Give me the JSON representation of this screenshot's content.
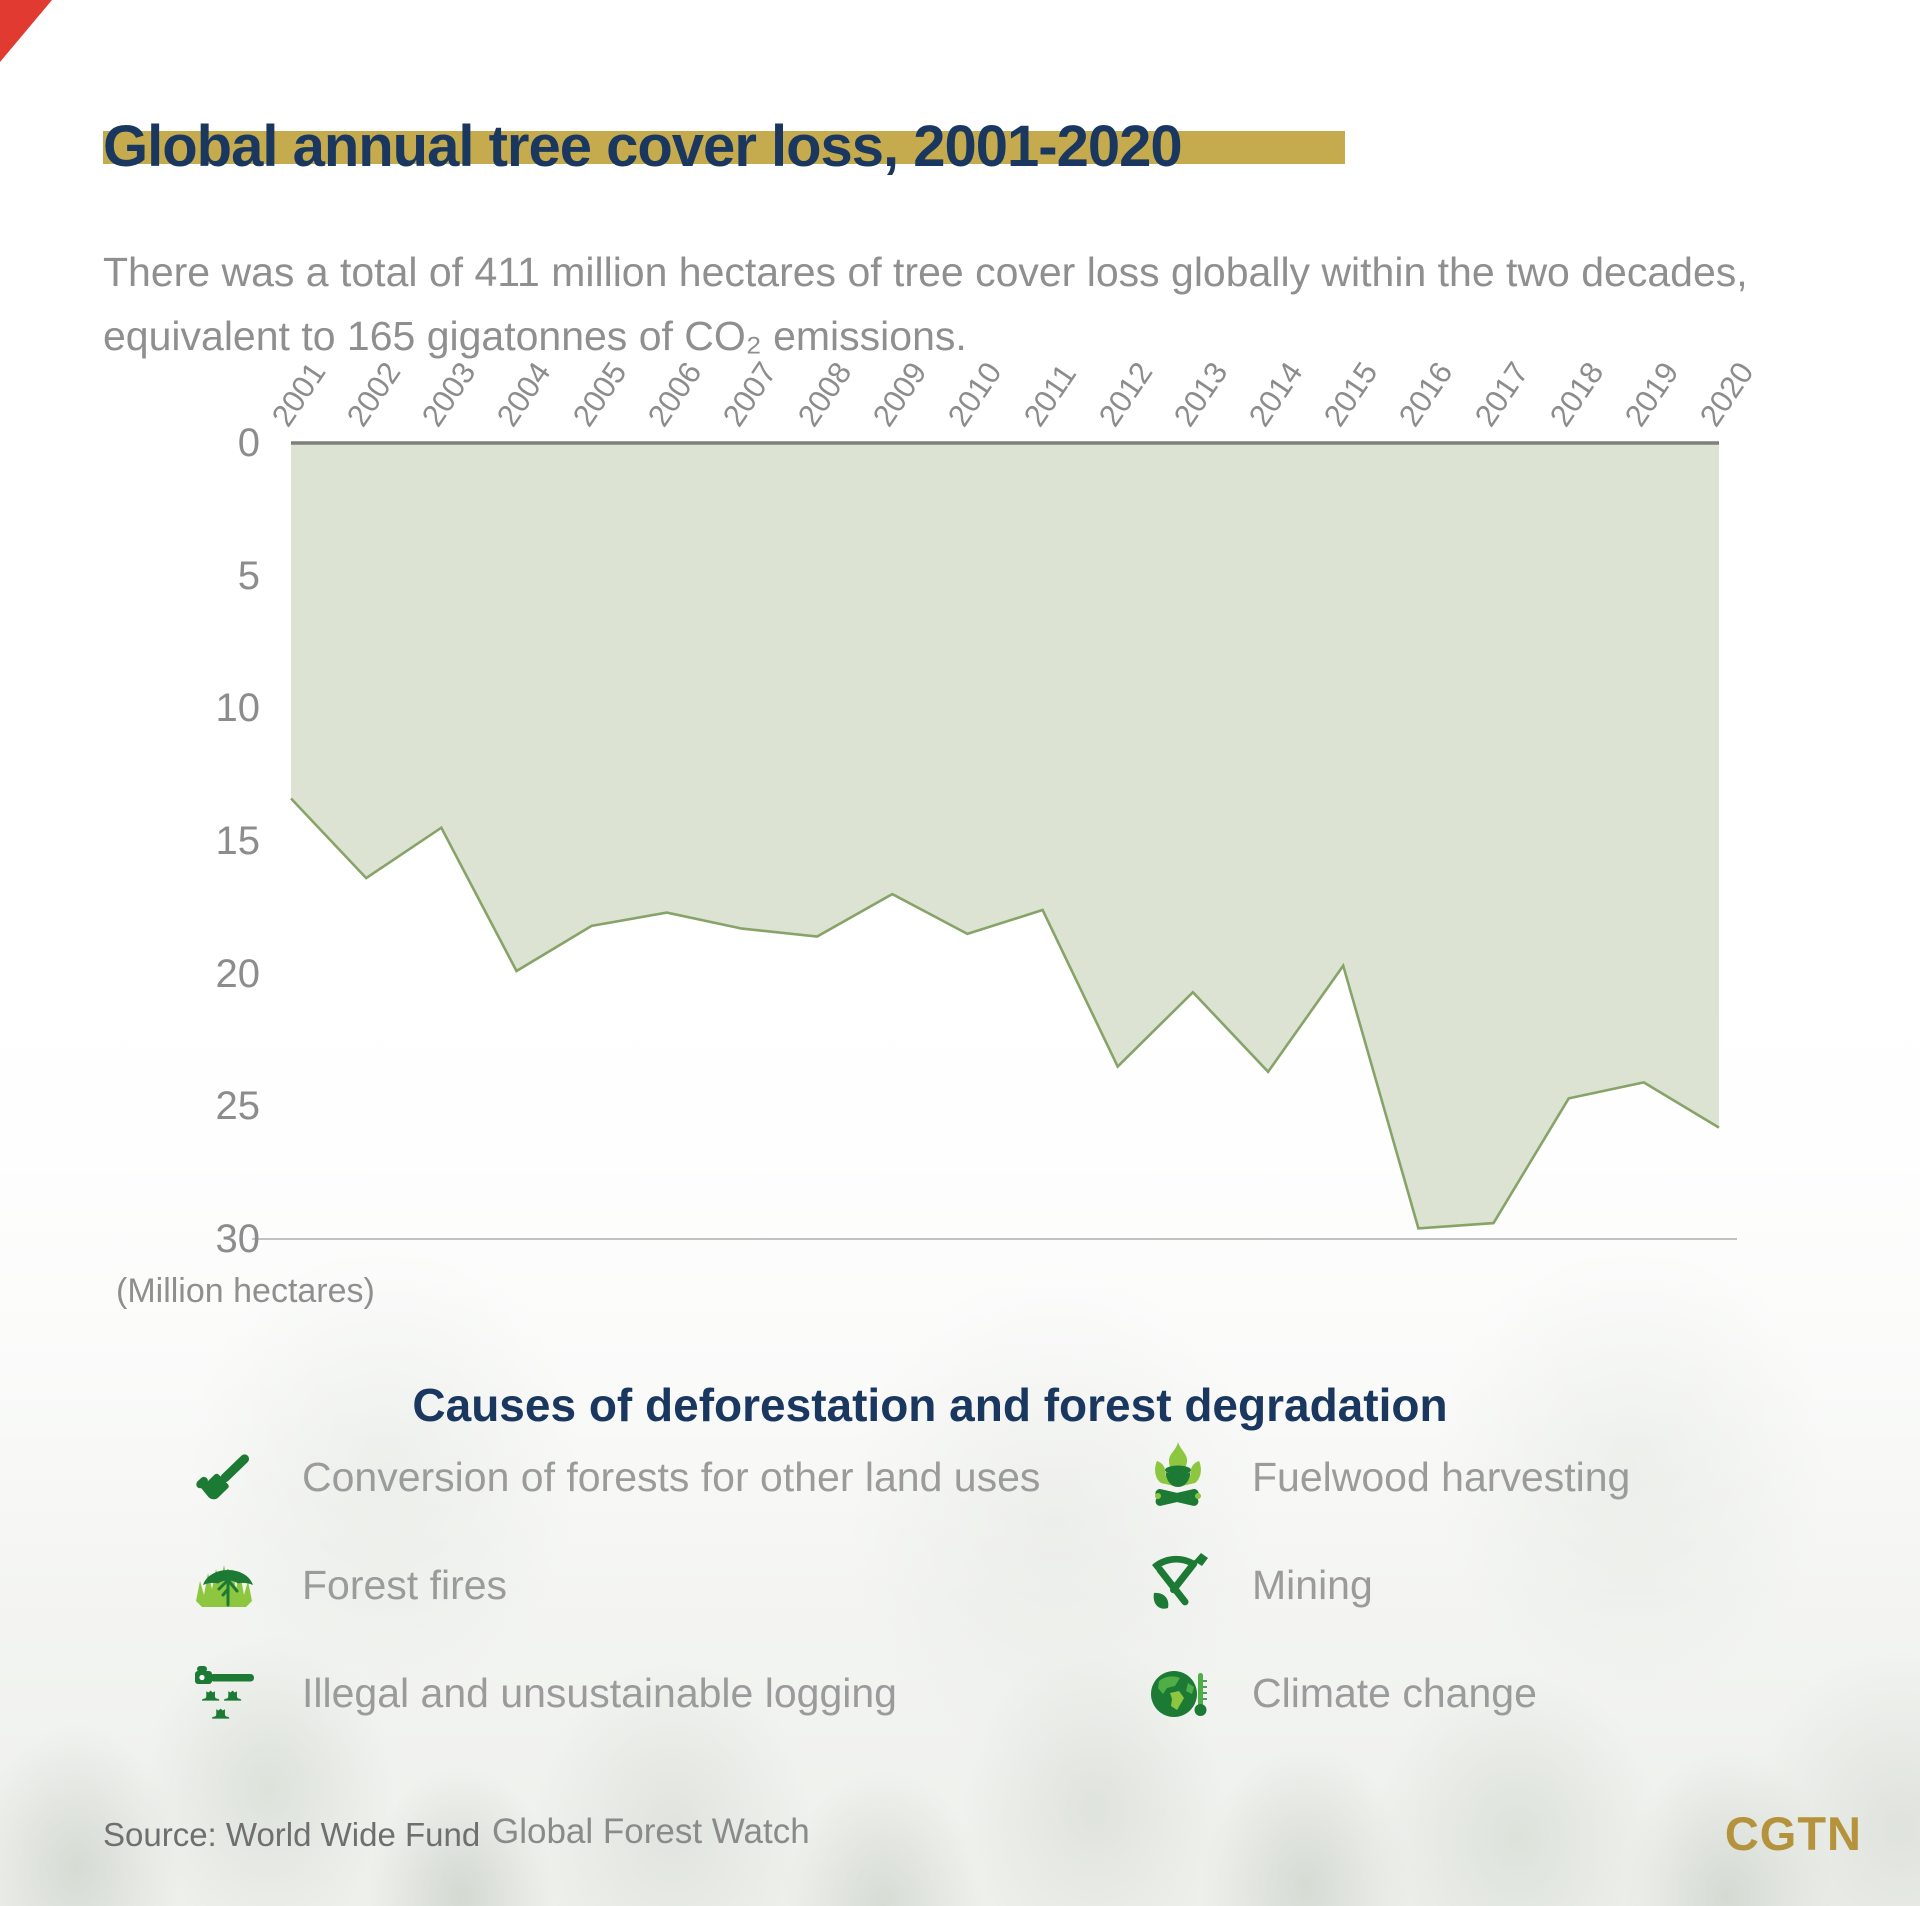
{
  "page": {
    "title": "Global annual tree cover loss, 2001-2020",
    "subtitle": "There was a total of 411 million hectares of tree cover loss globally within the two decades, equivalent to 165 gigatonnes of CO₂ emissions.",
    "unit_note": "(Million hectares)",
    "causes_title": "Causes of deforestation and forest degradation",
    "source_label": "Source: World Wide Fund",
    "source_secondary": "Global Forest Watch",
    "brand": "CGTN"
  },
  "colors": {
    "navy": "#19375f",
    "accent_gold": "#c6ab4e",
    "brand_gold": "#b5923c",
    "corner_red": "#e13a30",
    "area_fill": "#dce3d2",
    "area_line": "#87a368",
    "axis_line": "#7f7f7f",
    "gridline": "#aeaeae",
    "icon_green": "#1d7a35",
    "icon_mid_green": "#4fae45",
    "icon_light_green": "#8dc63f"
  },
  "chart_data": {
    "type": "area",
    "title": "Global annual tree cover loss, 2001-2020",
    "categories": [
      2001,
      2002,
      2003,
      2004,
      2005,
      2006,
      2007,
      2008,
      2009,
      2010,
      2011,
      2012,
      2013,
      2014,
      2015,
      2016,
      2017,
      2018,
      2019,
      2020
    ],
    "values": [
      13.4,
      16.4,
      14.5,
      19.9,
      18.2,
      17.7,
      18.3,
      18.6,
      17.0,
      18.5,
      17.6,
      23.5,
      20.7,
      23.7,
      19.7,
      29.6,
      29.4,
      24.7,
      24.1,
      25.8
    ],
    "xlabel": "",
    "ylabel": "(Million hectares)",
    "yticks": [
      0,
      5,
      10,
      15,
      20,
      25,
      30
    ],
    "ylim": [
      0,
      30
    ],
    "y_axis_inverted": true,
    "grid": "top zero axis line and bottom 30 gridline only",
    "legend_position": "none"
  },
  "causes": {
    "left": [
      {
        "icon": "chainsaw-icon",
        "label": "Conversion of forests for other land uses"
      },
      {
        "icon": "burning-tree-icon",
        "label": "Forest fires"
      },
      {
        "icon": "logging-stumps-icon",
        "label": "Illegal and unsustainable logging"
      }
    ],
    "right": [
      {
        "icon": "campfire-icon",
        "label": "Fuelwood harvesting"
      },
      {
        "icon": "pickaxe-shovel-icon",
        "label": "Mining"
      },
      {
        "icon": "globe-thermometer-icon",
        "label": "Climate change"
      }
    ]
  }
}
